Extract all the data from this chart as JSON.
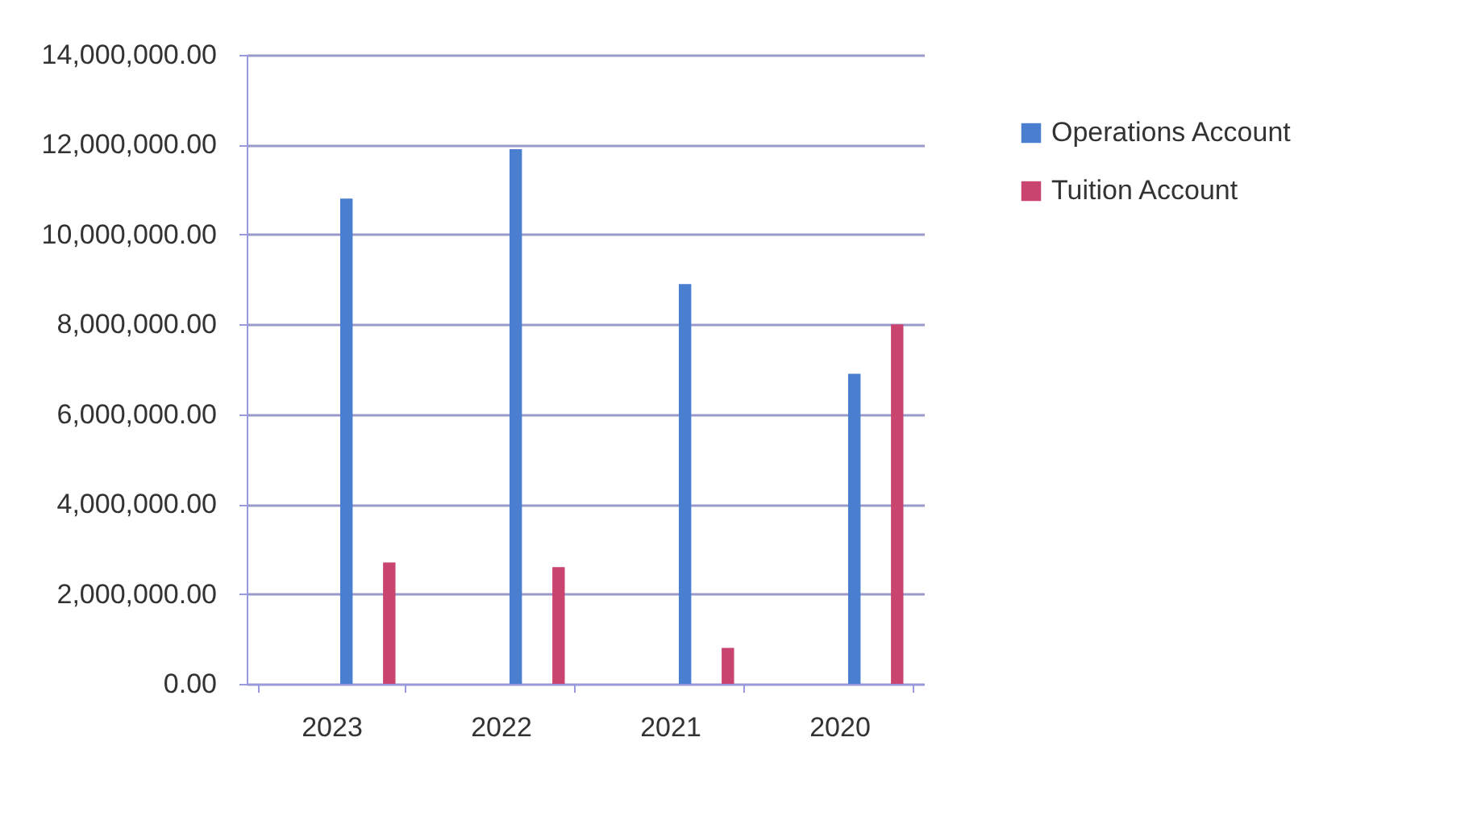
{
  "chart_data": {
    "type": "bar",
    "categories": [
      "2023",
      "2022",
      "2021",
      "2020"
    ],
    "series": [
      {
        "name": "Operations Account",
        "color": "#4a7fd0",
        "values": [
          10800000,
          11900000,
          8900000,
          6900000
        ]
      },
      {
        "name": "Tuition Account",
        "color": "#c9446e",
        "values": [
          2700000,
          2600000,
          800000,
          8000000
        ]
      }
    ],
    "ylim": [
      0,
      14000000
    ],
    "yticks": [
      {
        "value": 0,
        "label": "0.00"
      },
      {
        "value": 2000000,
        "label": "2,000,000.00"
      },
      {
        "value": 4000000,
        "label": "4,000,000.00"
      },
      {
        "value": 6000000,
        "label": "6,000,000.00"
      },
      {
        "value": 8000000,
        "label": "8,000,000.00"
      },
      {
        "value": 10000000,
        "label": "10,000,000.00"
      },
      {
        "value": 12000000,
        "label": "12,000,000.00"
      },
      {
        "value": 14000000,
        "label": "14,000,000.00"
      }
    ],
    "grid": "y",
    "legend": "right"
  }
}
